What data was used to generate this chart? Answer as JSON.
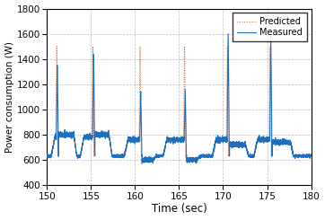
{
  "title": "",
  "xlabel": "Time (sec)",
  "ylabel": "Power consumption (W)",
  "xlim": [
    150,
    180
  ],
  "ylim": [
    400,
    1800
  ],
  "yticks": [
    400,
    600,
    800,
    1000,
    1200,
    1400,
    1600,
    1800
  ],
  "xticks": [
    150,
    155,
    160,
    165,
    170,
    175,
    180
  ],
  "measured_color": "#1f6fbf",
  "predicted_color": "#e05020",
  "background_color": "#ffffff",
  "legend_labels": [
    "Measured",
    "Predicted"
  ],
  "grid_color": "#aaaaaa",
  "baseline": 630,
  "peak_measured": 1500,
  "peak_predicted": 1500,
  "cutting_level": 800,
  "cutting_segments": [
    {
      "cs": 150.5,
      "ce": 153.4,
      "ms": 151.1,
      "me": 151.25,
      "ps": 151.05,
      "pe": 151.2,
      "post_level": 800
    },
    {
      "cs": 153.8,
      "ce": 157.4,
      "ms": 155.2,
      "me": 155.4,
      "ps": 155.15,
      "pe": 155.35,
      "post_level": 800
    },
    {
      "cs": 158.8,
      "ce": 162.4,
      "ms": 160.55,
      "me": 160.75,
      "ps": 160.5,
      "pe": 160.7,
      "post_level": 600
    },
    {
      "cs": 163.2,
      "ce": 167.4,
      "ms": 165.6,
      "me": 165.8,
      "ps": 165.55,
      "pe": 165.75,
      "post_level": 600
    },
    {
      "cs": 168.8,
      "ce": 172.9,
      "ms": 170.5,
      "me": 170.7,
      "ps": 170.45,
      "pe": 170.65,
      "post_level": 720
    },
    {
      "cs": 173.5,
      "ce": 178.0,
      "ms": 175.3,
      "me": 175.55,
      "ps": 175.25,
      "pe": 175.5,
      "post_level": 740
    }
  ]
}
